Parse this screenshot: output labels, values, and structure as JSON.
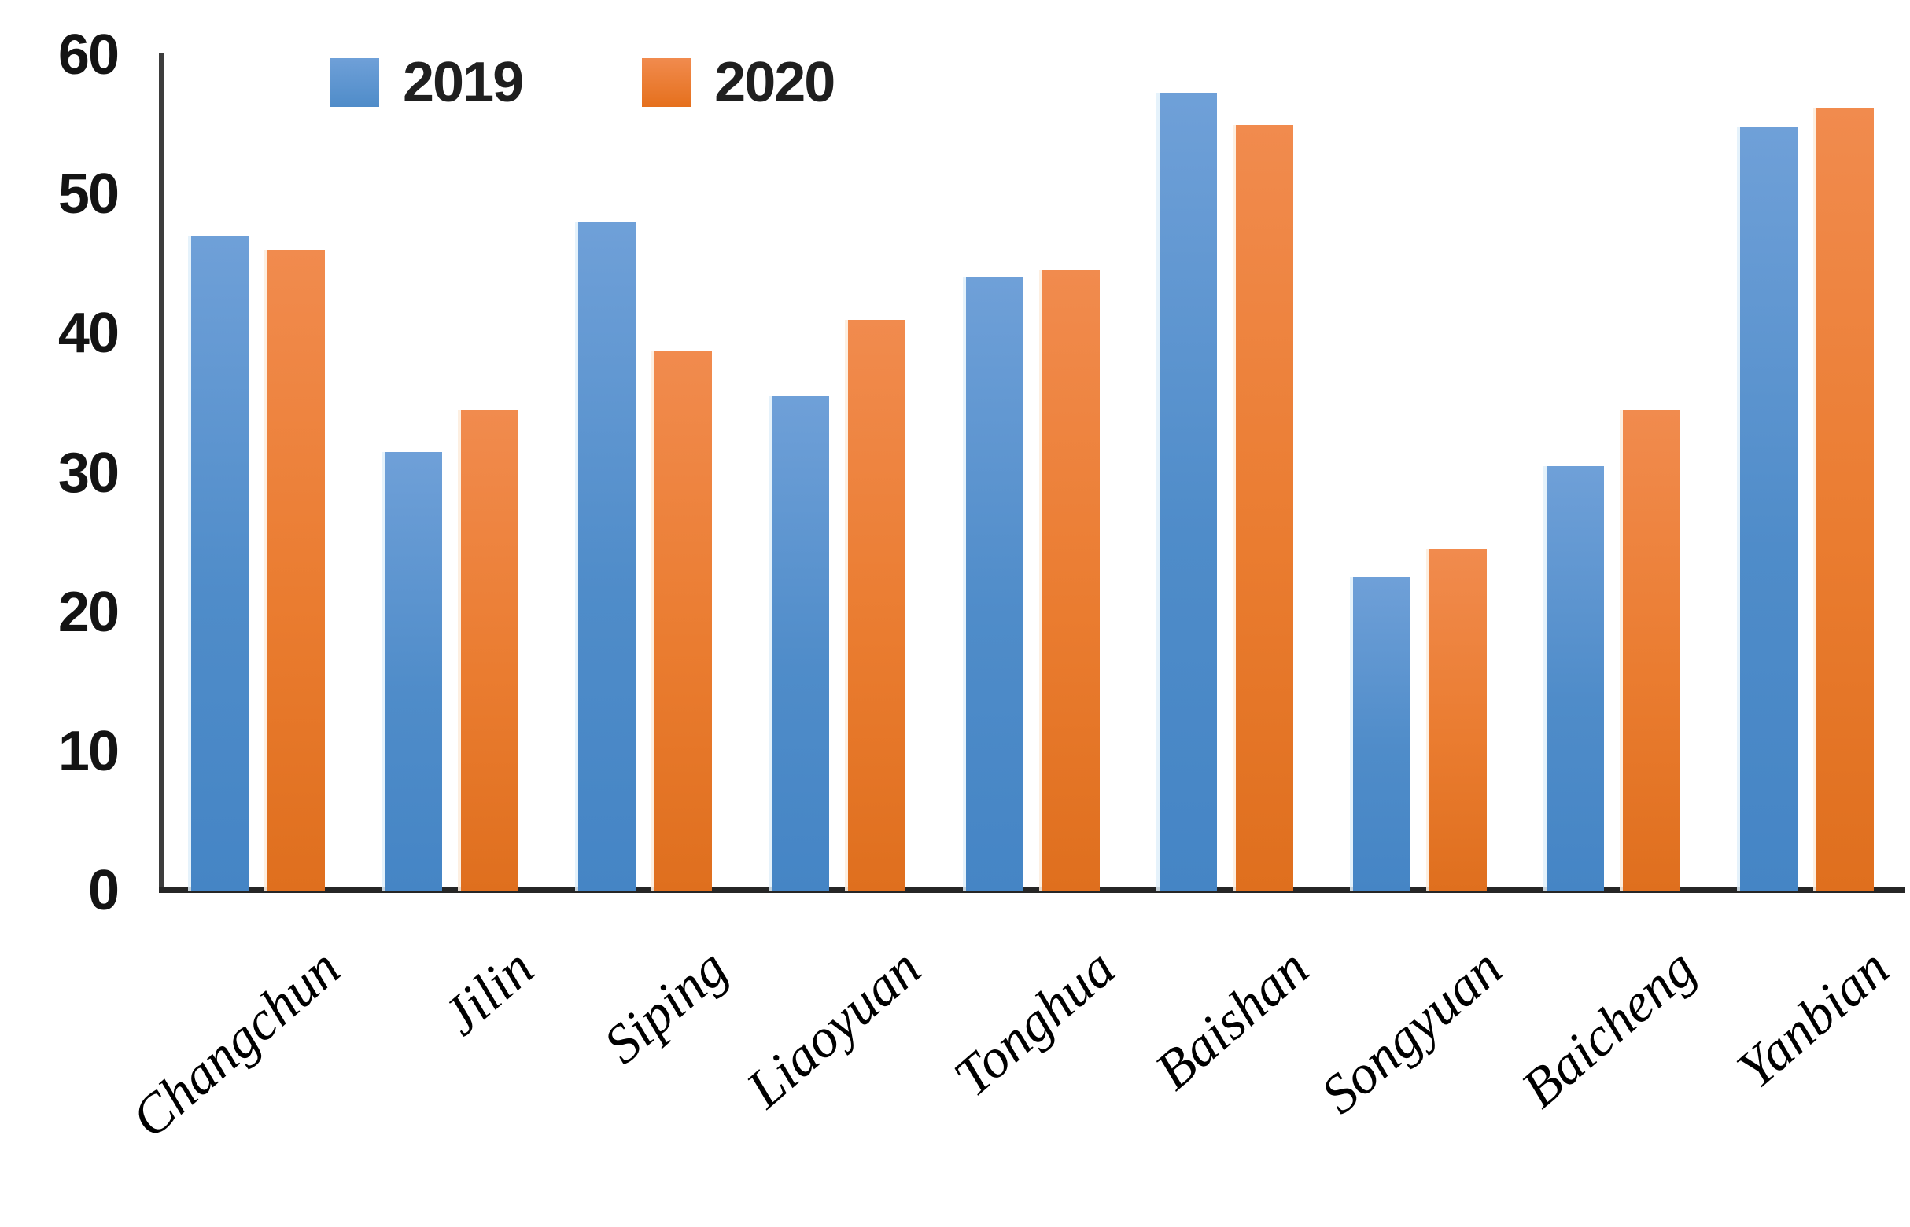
{
  "chart_data": {
    "type": "bar",
    "title": "",
    "xlabel": "",
    "ylabel": "",
    "categories": [
      "Changchun",
      "Jilin",
      "Siping",
      "Liaoyuan",
      "Tonghua",
      "Baishan",
      "Songyuan",
      "Baicheng",
      "Yanbian"
    ],
    "series": [
      {
        "name": "2019",
        "color": "#5B9BD5",
        "values": [
          47,
          31.5,
          48,
          35.5,
          44,
          57.3,
          22.5,
          30.5,
          54.8
        ]
      },
      {
        "name": "2020",
        "color": "#ED7D31",
        "values": [
          46,
          34.5,
          38.8,
          41,
          44.6,
          55,
          24.5,
          34.5,
          56.2
        ]
      }
    ],
    "ylim": [
      0,
      60
    ],
    "yticks": [
      0,
      10,
      20,
      30,
      40,
      50,
      60
    ],
    "grid": "off",
    "legend_position": "top",
    "axis_color": "#3d3d3d"
  }
}
